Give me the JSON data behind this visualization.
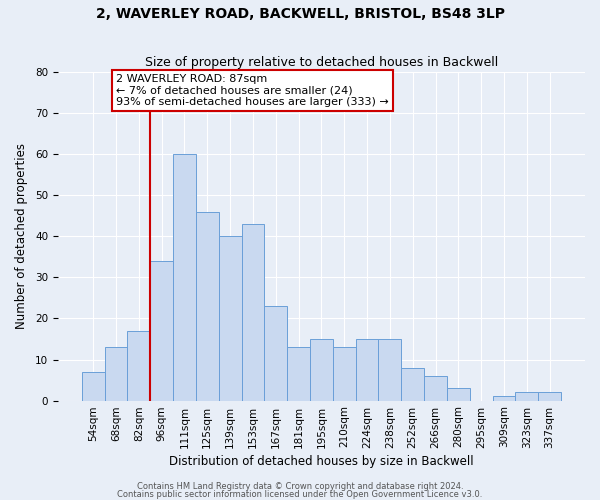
{
  "title": "2, WAVERLEY ROAD, BACKWELL, BRISTOL, BS48 3LP",
  "subtitle": "Size of property relative to detached houses in Backwell",
  "xlabel": "Distribution of detached houses by size in Backwell",
  "ylabel": "Number of detached properties",
  "bin_labels": [
    "54sqm",
    "68sqm",
    "82sqm",
    "96sqm",
    "111sqm",
    "125sqm",
    "139sqm",
    "153sqm",
    "167sqm",
    "181sqm",
    "195sqm",
    "210sqm",
    "224sqm",
    "238sqm",
    "252sqm",
    "266sqm",
    "280sqm",
    "295sqm",
    "309sqm",
    "323sqm",
    "337sqm"
  ],
  "bar_heights": [
    7,
    13,
    17,
    34,
    60,
    46,
    40,
    43,
    23,
    13,
    15,
    13,
    15,
    15,
    8,
    6,
    3,
    0,
    1,
    2,
    2
  ],
  "bar_color": "#c9d9f0",
  "bar_edge_color": "#6a9fd8",
  "vline_color": "#cc0000",
  "annotation_text": "2 WAVERLEY ROAD: 87sqm\n← 7% of detached houses are smaller (24)\n93% of semi-detached houses are larger (333) →",
  "annotation_box_color": "#ffffff",
  "annotation_box_edge_color": "#cc0000",
  "ylim": [
    0,
    80
  ],
  "yticks": [
    0,
    10,
    20,
    30,
    40,
    50,
    60,
    70,
    80
  ],
  "background_color": "#e8eef7",
  "plot_bg_color": "#e8eef7",
  "footer1": "Contains HM Land Registry data © Crown copyright and database right 2024.",
  "footer2": "Contains public sector information licensed under the Open Government Licence v3.0.",
  "title_fontsize": 10,
  "subtitle_fontsize": 9,
  "axis_label_fontsize": 8.5,
  "tick_fontsize": 7.5,
  "annotation_fontsize": 8.0,
  "footer_fontsize": 6.0
}
